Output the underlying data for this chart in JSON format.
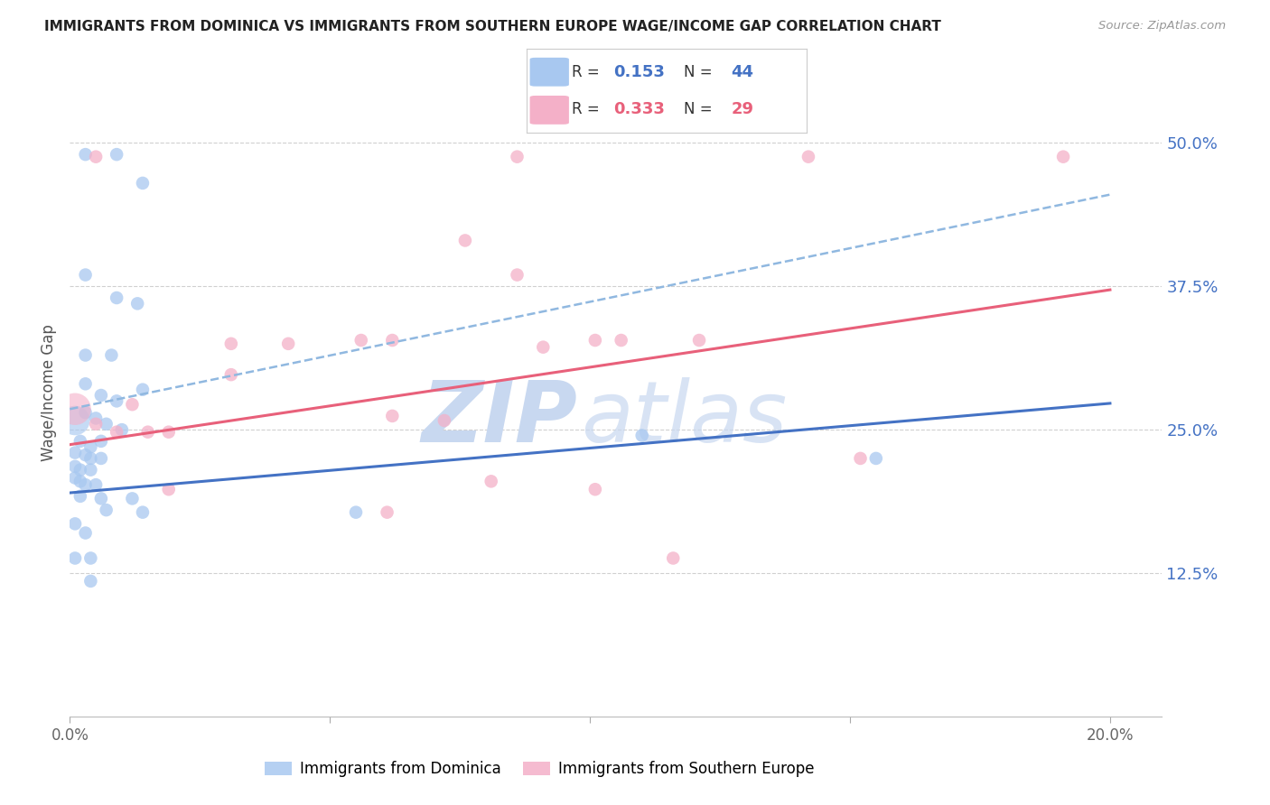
{
  "title": "IMMIGRANTS FROM DOMINICA VS IMMIGRANTS FROM SOUTHERN EUROPE WAGE/INCOME GAP CORRELATION CHART",
  "source": "Source: ZipAtlas.com",
  "ylabel": "Wage/Income Gap",
  "xlim": [
    0.0,
    0.21
  ],
  "ylim": [
    0.0,
    0.565
  ],
  "xticks": [
    0.0,
    0.05,
    0.1,
    0.15,
    0.2
  ],
  "xtick_labels": [
    "0.0%",
    "",
    "",
    "",
    "20.0%"
  ],
  "ytick_labels_right": [
    "12.5%",
    "25.0%",
    "37.5%",
    "50.0%"
  ],
  "ytick_values_right": [
    0.125,
    0.25,
    0.375,
    0.5
  ],
  "legend_blue_R": "0.153",
  "legend_blue_N": "44",
  "legend_pink_R": "0.333",
  "legend_pink_N": "29",
  "blue_color": "#a8c8f0",
  "pink_color": "#f4b0c8",
  "blue_line_color": "#4472c4",
  "pink_line_color": "#e8607a",
  "dashed_line_color": "#90b8e0",
  "grid_color": "#d0d0d0",
  "title_color": "#222222",
  "right_label_color": "#4472c4",
  "blue_line": {
    "x0": 0.0,
    "y0": 0.195,
    "x1": 0.2,
    "y1": 0.273
  },
  "pink_line": {
    "x0": 0.0,
    "y0": 0.237,
    "x1": 0.2,
    "y1": 0.372
  },
  "dashed_line": {
    "x0": 0.0,
    "y0": 0.268,
    "x1": 0.2,
    "y1": 0.455
  },
  "blue_scatter": [
    [
      0.003,
      0.49
    ],
    [
      0.009,
      0.49
    ],
    [
      0.014,
      0.465
    ],
    [
      0.003,
      0.385
    ],
    [
      0.009,
      0.365
    ],
    [
      0.013,
      0.36
    ],
    [
      0.003,
      0.315
    ],
    [
      0.008,
      0.315
    ],
    [
      0.003,
      0.29
    ],
    [
      0.006,
      0.28
    ],
    [
      0.009,
      0.275
    ],
    [
      0.014,
      0.285
    ],
    [
      0.003,
      0.265
    ],
    [
      0.005,
      0.26
    ],
    [
      0.007,
      0.255
    ],
    [
      0.01,
      0.25
    ],
    [
      0.002,
      0.24
    ],
    [
      0.004,
      0.235
    ],
    [
      0.006,
      0.24
    ],
    [
      0.001,
      0.23
    ],
    [
      0.003,
      0.228
    ],
    [
      0.004,
      0.225
    ],
    [
      0.006,
      0.225
    ],
    [
      0.001,
      0.218
    ],
    [
      0.002,
      0.215
    ],
    [
      0.004,
      0.215
    ],
    [
      0.001,
      0.208
    ],
    [
      0.002,
      0.205
    ],
    [
      0.003,
      0.202
    ],
    [
      0.005,
      0.202
    ],
    [
      0.002,
      0.192
    ],
    [
      0.006,
      0.19
    ],
    [
      0.012,
      0.19
    ],
    [
      0.007,
      0.18
    ],
    [
      0.014,
      0.178
    ],
    [
      0.001,
      0.168
    ],
    [
      0.003,
      0.16
    ],
    [
      0.001,
      0.138
    ],
    [
      0.004,
      0.138
    ],
    [
      0.004,
      0.118
    ],
    [
      0.11,
      0.245
    ],
    [
      0.155,
      0.225
    ],
    [
      0.055,
      0.178
    ]
  ],
  "blue_large_dot": [
    0.001,
    0.258
  ],
  "blue_large_size": 550,
  "pink_large_dot": [
    0.001,
    0.268
  ],
  "pink_large_size": 650,
  "pink_scatter": [
    [
      0.005,
      0.255
    ],
    [
      0.009,
      0.248
    ],
    [
      0.012,
      0.272
    ],
    [
      0.015,
      0.248
    ],
    [
      0.019,
      0.248
    ],
    [
      0.031,
      0.298
    ],
    [
      0.031,
      0.325
    ],
    [
      0.042,
      0.325
    ],
    [
      0.056,
      0.328
    ],
    [
      0.062,
      0.328
    ],
    [
      0.062,
      0.262
    ],
    [
      0.072,
      0.258
    ],
    [
      0.076,
      0.415
    ],
    [
      0.086,
      0.385
    ],
    [
      0.091,
      0.322
    ],
    [
      0.101,
      0.328
    ],
    [
      0.106,
      0.328
    ],
    [
      0.121,
      0.328
    ],
    [
      0.116,
      0.138
    ],
    [
      0.081,
      0.205
    ],
    [
      0.101,
      0.198
    ],
    [
      0.061,
      0.178
    ],
    [
      0.142,
      0.488
    ],
    [
      0.191,
      0.488
    ],
    [
      0.019,
      0.198
    ],
    [
      0.152,
      0.225
    ],
    [
      0.005,
      0.488
    ],
    [
      0.086,
      0.488
    ]
  ],
  "watermark_ZIP_color": "#c8d8f0",
  "watermark_atlas_color": "#c8d8f0",
  "background_color": "#ffffff"
}
